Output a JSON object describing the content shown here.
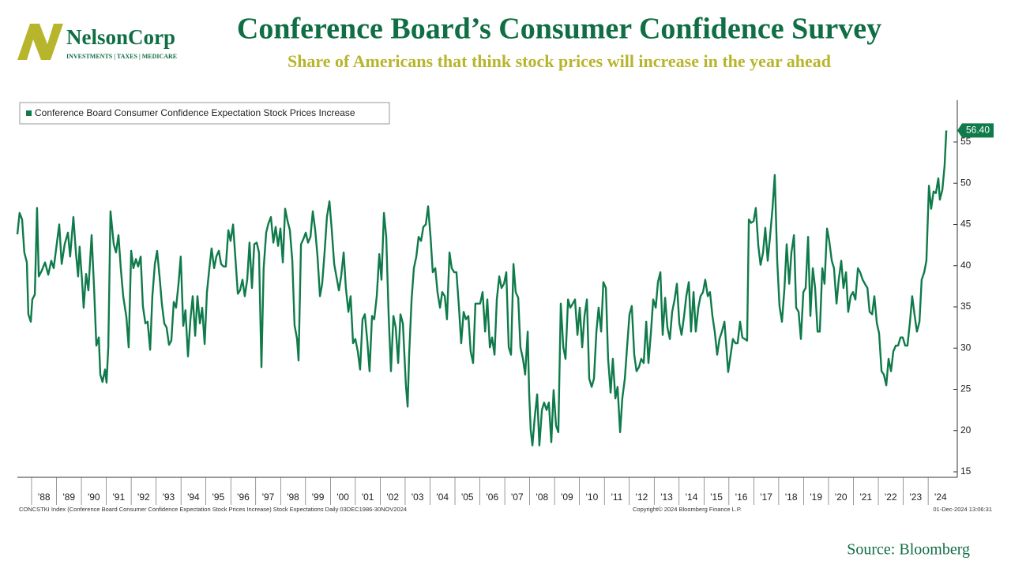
{
  "logo": {
    "name": "NelsonCorp",
    "tagline": "Investments | Taxes | Medicare"
  },
  "footer": {
    "left": "CONCSTKI Index (Conference Board Consumer Confidence Expectation Stock Prices Increase) Stock Expectations  Daily  03DEC1986-30NOV2024",
    "center": "Copyright© 2024 Bloomberg Finance L.P.",
    "right": "01-Dec-2024 13:06:31"
  },
  "source": "Source: Bloomberg",
  "chart_data": {
    "type": "line",
    "title": "Conference Board’s Consumer Confidence Survey",
    "subtitle": "Share of Americans that think stock prices will increase in the year ahead",
    "legend": "top-left",
    "xlim": [
      1987.43,
      2025.17
    ],
    "ylim": [
      14.33,
      60.07
    ],
    "yticks": [
      15,
      20,
      25,
      30,
      35,
      40,
      45,
      50,
      55
    ],
    "xticks": [
      {
        "value": 1988,
        "label": "'88"
      },
      {
        "value": 1989,
        "label": "'89"
      },
      {
        "value": 1990,
        "label": "'90"
      },
      {
        "value": 1991,
        "label": "'91"
      },
      {
        "value": 1992,
        "label": "'92"
      },
      {
        "value": 1993,
        "label": "'93"
      },
      {
        "value": 1994,
        "label": "'94"
      },
      {
        "value": 1995,
        "label": "'95"
      },
      {
        "value": 1996,
        "label": "'96"
      },
      {
        "value": 1997,
        "label": "'97"
      },
      {
        "value": 1998,
        "label": "'98"
      },
      {
        "value": 1999,
        "label": "'99"
      },
      {
        "value": 2000,
        "label": "'00"
      },
      {
        "value": 2001,
        "label": "'01"
      },
      {
        "value": 2002,
        "label": "'02"
      },
      {
        "value": 2003,
        "label": "'03"
      },
      {
        "value": 2004,
        "label": "'04"
      },
      {
        "value": 2005,
        "label": "'05"
      },
      {
        "value": 2006,
        "label": "'06"
      },
      {
        "value": 2007,
        "label": "'07"
      },
      {
        "value": 2008,
        "label": "'08"
      },
      {
        "value": 2009,
        "label": "'09"
      },
      {
        "value": 2010,
        "label": "'10"
      },
      {
        "value": 2011,
        "label": "'11"
      },
      {
        "value": 2012,
        "label": "'12"
      },
      {
        "value": 2013,
        "label": "'13"
      },
      {
        "value": 2014,
        "label": "'14"
      },
      {
        "value": 2015,
        "label": "'15"
      },
      {
        "value": 2016,
        "label": "'16"
      },
      {
        "value": 2017,
        "label": "'17"
      },
      {
        "value": 2018,
        "label": "'18"
      },
      {
        "value": 2019,
        "label": "'19"
      },
      {
        "value": 2020,
        "label": "'20"
      },
      {
        "value": 2021,
        "label": "'21"
      },
      {
        "value": 2022,
        "label": "'22"
      },
      {
        "value": 2023,
        "label": "'23"
      },
      {
        "value": 2024,
        "label": "'24"
      }
    ],
    "grid": false,
    "annotations": [
      {
        "x": 2024.73,
        "y": 56.4,
        "label": "56.40"
      }
    ],
    "x": [
      1987.43,
      1987.52,
      1987.62,
      1987.71,
      1987.81,
      1987.87,
      1987.97,
      1988.03,
      1988.13,
      1988.22,
      1988.29,
      1988.41,
      1988.54,
      1988.67,
      1988.79,
      1988.89,
      1989.01,
      1989.11,
      1989.21,
      1989.33,
      1989.46,
      1989.55,
      1989.68,
      1989.78,
      1989.87,
      1989.93,
      1990.03,
      1990.09,
      1990.19,
      1990.28,
      1990.41,
      1990.51,
      1990.6,
      1990.7,
      1990.76,
      1990.85,
      1990.95,
      1991.01,
      1991.08,
      1991.17,
      1991.3,
      1991.39,
      1991.49,
      1991.58,
      1991.68,
      1991.81,
      1991.9,
      1992.0,
      1992.09,
      1992.19,
      1992.28,
      1992.38,
      1992.47,
      1992.57,
      1992.66,
      1992.76,
      1992.85,
      1992.95,
      1993.04,
      1993.14,
      1993.23,
      1993.33,
      1993.42,
      1993.52,
      1993.61,
      1993.71,
      1993.8,
      1993.9,
      1993.99,
      1994.09,
      1994.18,
      1994.28,
      1994.38,
      1994.47,
      1994.57,
      1994.66,
      1994.76,
      1994.85,
      1994.95,
      1995.04,
      1995.14,
      1995.23,
      1995.33,
      1995.42,
      1995.52,
      1995.61,
      1995.71,
      1995.8,
      1995.9,
      1995.99,
      1996.09,
      1996.18,
      1996.28,
      1996.37,
      1996.47,
      1996.56,
      1996.66,
      1996.75,
      1996.85,
      1996.94,
      1997.04,
      1997.13,
      1997.23,
      1997.32,
      1997.42,
      1997.51,
      1997.61,
      1997.71,
      1997.8,
      1997.9,
      1997.99,
      1998.09,
      1998.18,
      1998.28,
      1998.37,
      1998.47,
      1998.56,
      1998.66,
      1998.72,
      1998.82,
      1998.91,
      1999.01,
      1999.1,
      1999.2,
      1999.29,
      1999.39,
      1999.48,
      1999.58,
      1999.67,
      1999.77,
      1999.86,
      1999.96,
      2000.05,
      2000.15,
      2000.24,
      2000.34,
      2000.43,
      2000.53,
      2000.62,
      2000.72,
      2000.81,
      2000.91,
      2001.0,
      2001.1,
      2001.19,
      2001.29,
      2001.38,
      2001.48,
      2001.57,
      2001.67,
      2001.76,
      2001.86,
      2001.96,
      2002.05,
      2002.15,
      2002.24,
      2002.34,
      2002.43,
      2002.53,
      2002.62,
      2002.72,
      2002.81,
      2002.91,
      2002.97,
      2003.03,
      2003.1,
      2003.16,
      2003.26,
      2003.35,
      2003.45,
      2003.54,
      2003.64,
      2003.73,
      2003.83,
      2003.92,
      2004.02,
      2004.11,
      2004.21,
      2004.3,
      2004.4,
      2004.49,
      2004.59,
      2004.68,
      2004.78,
      2004.87,
      2004.97,
      2005.06,
      2005.16,
      2005.25,
      2005.35,
      2005.44,
      2005.54,
      2005.63,
      2005.73,
      2005.82,
      2005.92,
      2006.01,
      2006.11,
      2006.21,
      2006.3,
      2006.4,
      2006.49,
      2006.59,
      2006.68,
      2006.78,
      2006.87,
      2006.97,
      2007.06,
      2007.16,
      2007.25,
      2007.35,
      2007.44,
      2007.54,
      2007.63,
      2007.73,
      2007.82,
      2007.92,
      2007.98,
      2008.04,
      2008.11,
      2008.2,
      2008.3,
      2008.39,
      2008.49,
      2008.58,
      2008.68,
      2008.77,
      2008.87,
      2008.96,
      2009.06,
      2009.15,
      2009.25,
      2009.35,
      2009.44,
      2009.54,
      2009.63,
      2009.73,
      2009.82,
      2009.92,
      2010.01,
      2010.11,
      2010.2,
      2010.3,
      2010.39,
      2010.49,
      2010.58,
      2010.68,
      2010.77,
      2010.87,
      2010.96,
      2011.06,
      2011.15,
      2011.25,
      2011.34,
      2011.44,
      2011.53,
      2011.63,
      2011.72,
      2011.82,
      2011.91,
      2012.01,
      2012.1,
      2012.2,
      2012.29,
      2012.39,
      2012.48,
      2012.58,
      2012.68,
      2012.77,
      2012.87,
      2012.96,
      2013.06,
      2013.15,
      2013.25,
      2013.34,
      2013.44,
      2013.53,
      2013.63,
      2013.72,
      2013.82,
      2013.91,
      2014.01,
      2014.1,
      2014.2,
      2014.29,
      2014.39,
      2014.48,
      2014.58,
      2014.67,
      2014.77,
      2014.86,
      2014.96,
      2015.05,
      2015.15,
      2015.24,
      2015.34,
      2015.43,
      2015.53,
      2015.62,
      2015.72,
      2015.82,
      2015.91,
      2015.97,
      2016.07,
      2016.16,
      2016.26,
      2016.35,
      2016.45,
      2016.54,
      2016.64,
      2016.73,
      2016.8,
      2016.89,
      2016.99,
      2017.08,
      2017.18,
      2017.27,
      2017.37,
      2017.46,
      2017.56,
      2017.65,
      2017.75,
      2017.84,
      2017.94,
      2018.03,
      2018.13,
      2018.23,
      2018.32,
      2018.42,
      2018.51,
      2018.61,
      2018.7,
      2018.8,
      2018.89,
      2018.99,
      2019.08,
      2019.18,
      2019.27,
      2019.37,
      2019.46,
      2019.56,
      2019.65,
      2019.75,
      2019.84,
      2019.94,
      2020.03,
      2020.13,
      2020.22,
      2020.32,
      2020.41,
      2020.51,
      2020.6,
      2020.7,
      2020.79,
      2020.89,
      2020.98,
      2021.08,
      2021.18,
      2021.27,
      2021.37,
      2021.46,
      2021.56,
      2021.65,
      2021.75,
      2021.84,
      2021.94,
      2022.03,
      2022.13,
      2022.22,
      2022.32,
      2022.41,
      2022.51,
      2022.6,
      2022.7,
      2022.79,
      2022.89,
      2022.98,
      2023.08,
      2023.17,
      2023.27,
      2023.36,
      2023.46,
      2023.55,
      2023.65,
      2023.74,
      2023.84,
      2023.93,
      2024.03,
      2024.12,
      2024.22,
      2024.31,
      2024.41,
      2024.47,
      2024.57,
      2024.66,
      2024.73
    ],
    "series": [
      {
        "name": "Conference Board Consumer Confidence Expectation Stock Prices Increase",
        "color": "#0f7a4a",
        "values": [
          43.8,
          46.4,
          45.6,
          41.6,
          40.4,
          34.1,
          33.2,
          35.9,
          36.5,
          47.0,
          38.7,
          39.4,
          40.4,
          38.9,
          40.6,
          39.7,
          42.6,
          45.0,
          40.2,
          42.6,
          44.0,
          41.1,
          45.9,
          41.6,
          38.7,
          42.3,
          38.0,
          34.9,
          39.0,
          37.0,
          43.7,
          37.3,
          30.3,
          31.3,
          26.8,
          25.9,
          27.4,
          25.8,
          30.1,
          46.6,
          42.6,
          41.6,
          43.7,
          39.7,
          36.3,
          33.7,
          30.1,
          41.8,
          39.7,
          40.8,
          39.9,
          41.1,
          35.1,
          33.0,
          33.2,
          29.8,
          36.3,
          40.2,
          41.8,
          38.7,
          35.4,
          33.0,
          32.5,
          30.4,
          30.9,
          35.6,
          34.9,
          37.8,
          41.1,
          32.7,
          34.6,
          29.0,
          33.5,
          36.3,
          31.5,
          36.3,
          33.0,
          34.9,
          30.5,
          36.8,
          39.7,
          42.1,
          39.7,
          41.1,
          41.8,
          40.2,
          39.9,
          39.9,
          44.3,
          43.0,
          45.0,
          41.1,
          36.6,
          37.0,
          38.3,
          36.3,
          38.3,
          42.8,
          37.3,
          42.6,
          42.8,
          41.6,
          27.7,
          39.7,
          44.0,
          45.1,
          45.9,
          42.8,
          44.7,
          42.4,
          44.5,
          40.4,
          46.9,
          45.4,
          44.3,
          40.6,
          32.8,
          31.1,
          28.5,
          42.6,
          43.2,
          44.0,
          42.8,
          43.5,
          46.6,
          44.3,
          41.1,
          36.3,
          37.8,
          41.8,
          45.9,
          47.8,
          44.5,
          40.2,
          38.7,
          37.0,
          38.7,
          41.6,
          37.3,
          34.4,
          36.3,
          30.6,
          31.1,
          29.6,
          27.4,
          33.5,
          34.1,
          30.9,
          27.2,
          33.9,
          33.5,
          36.3,
          41.4,
          38.3,
          46.4,
          43.5,
          33.9,
          27.2,
          33.9,
          32.5,
          28.2,
          34.1,
          33.0,
          29.2,
          25.5,
          22.9,
          29.2,
          35.9,
          39.7,
          41.1,
          43.5,
          43.0,
          44.7,
          45.0,
          47.2,
          43.5,
          39.2,
          39.7,
          36.8,
          34.9,
          36.8,
          36.3,
          33.5,
          41.6,
          39.7,
          39.2,
          39.2,
          34.9,
          30.6,
          34.4,
          33.5,
          33.9,
          29.6,
          28.2,
          35.4,
          35.4,
          35.4,
          36.8,
          32.0,
          35.9,
          30.1,
          31.3,
          29.2,
          35.9,
          38.7,
          37.3,
          37.8,
          39.2,
          30.1,
          29.2,
          40.2,
          36.8,
          36.1,
          30.1,
          28.7,
          26.8,
          32.0,
          24.4,
          20.1,
          18.2,
          21.5,
          24.4,
          18.2,
          22.5,
          23.4,
          22.5,
          23.4,
          18.6,
          24.9,
          20.6,
          19.8,
          35.4,
          30.1,
          28.7,
          35.9,
          34.9,
          35.4,
          35.9,
          31.6,
          34.9,
          30.1,
          33.9,
          35.9,
          26.3,
          25.3,
          26.3,
          32.0,
          34.9,
          32.0,
          38.0,
          37.3,
          28.7,
          24.6,
          28.7,
          23.9,
          25.3,
          19.8,
          23.9,
          26.3,
          30.1,
          34.1,
          35.1,
          29.2,
          27.2,
          27.7,
          28.7,
          28.2,
          33.2,
          28.2,
          32.0,
          35.9,
          34.9,
          38.0,
          39.2,
          31.6,
          36.1,
          32.5,
          31.1,
          34.4,
          35.9,
          37.8,
          33.0,
          31.6,
          33.9,
          36.3,
          38.0,
          32.0,
          36.8,
          32.0,
          34.9,
          36.3,
          36.8,
          38.3,
          36.3,
          36.8,
          33.9,
          32.0,
          29.2,
          31.1,
          32.0,
          33.2,
          29.6,
          27.1,
          29.2,
          31.1,
          30.6,
          30.6,
          33.2,
          31.3,
          31.1,
          30.9,
          45.6,
          45.2,
          45.4,
          47.0,
          42.4,
          40.1,
          41.6,
          44.6,
          40.6,
          43.5,
          46.9,
          51.0,
          40.6,
          35.1,
          33.2,
          37.3,
          42.6,
          37.8,
          41.6,
          43.7,
          34.9,
          34.4,
          31.1,
          36.8,
          37.3,
          43.5,
          33.9,
          39.7,
          37.3,
          32.0,
          32.0,
          39.7,
          37.8,
          44.5,
          43.0,
          40.6,
          39.7,
          35.4,
          38.3,
          40.6,
          37.3,
          39.2,
          34.4,
          36.3,
          36.8,
          35.9,
          39.7,
          39.2,
          38.3,
          37.8,
          37.3,
          34.4,
          34.1,
          36.3,
          33.0,
          31.8,
          27.2,
          26.8,
          25.5,
          28.7,
          27.2,
          29.6,
          30.3,
          30.3,
          31.3,
          31.3,
          30.3,
          30.3,
          33.2,
          36.3,
          33.9,
          32.0,
          33.2,
          38.3,
          39.2,
          40.6,
          49.7,
          46.9,
          49.0,
          48.8,
          50.6,
          48.0,
          49.2,
          52.1,
          56.4
        ]
      }
    ]
  }
}
